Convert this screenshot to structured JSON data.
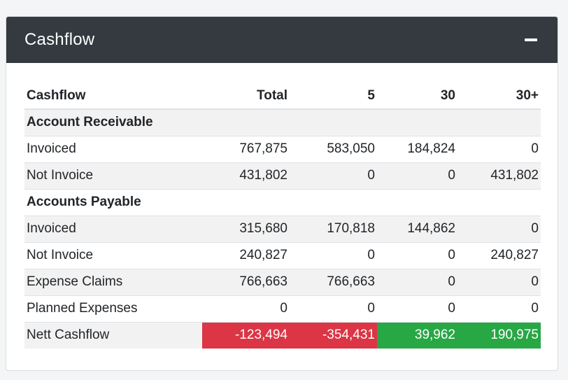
{
  "card": {
    "title": "Cashflow",
    "collapse_icon": "minus-icon"
  },
  "table": {
    "headers": [
      "Cashflow",
      "Total",
      "5",
      "30",
      "30+"
    ],
    "sections": {
      "receivable": "Account Receivable",
      "payable": "Accounts Payable"
    },
    "rows": {
      "ar_invoiced": [
        "Invoiced",
        "767,875",
        "583,050",
        "184,824",
        "0"
      ],
      "ar_not_invoice": [
        "Not Invoice",
        "431,802",
        "0",
        "0",
        "431,802"
      ],
      "ap_invoiced": [
        "Invoiced",
        "315,680",
        "170,818",
        "144,862",
        "0"
      ],
      "ap_not_invoice": [
        "Not Invoice",
        "240,827",
        "0",
        "0",
        "240,827"
      ],
      "expense_claims": [
        "Expense Claims",
        "766,663",
        "766,663",
        "0",
        "0"
      ],
      "planned_expenses": [
        "Planned Expenses",
        "0",
        "0",
        "0",
        "0"
      ],
      "nett_cashflow": [
        "Nett Cashflow",
        "-123,494",
        "-354,431",
        "39,962",
        "190,975"
      ]
    }
  },
  "colors": {
    "header_bg": "#343a40",
    "negative": "#dc3545",
    "positive": "#28a745",
    "stripe": "#f2f2f2"
  }
}
